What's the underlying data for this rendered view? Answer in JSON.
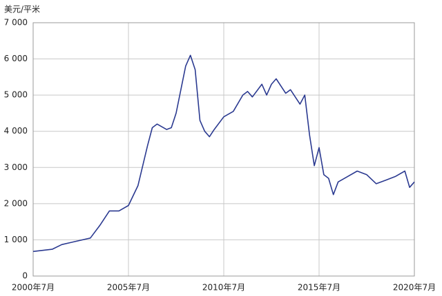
{
  "chart_data": {
    "type": "line",
    "y_label": "美元/平米",
    "x": [
      "2000-07",
      "2001-07",
      "2002-01",
      "2002-07",
      "2003-07",
      "2004-01",
      "2004-07",
      "2005-01",
      "2005-07",
      "2006-01",
      "2006-07",
      "2006-10",
      "2007-01",
      "2007-07",
      "2007-10",
      "2008-01",
      "2008-07",
      "2008-10",
      "2009-01",
      "2009-04",
      "2009-07",
      "2009-10",
      "2010-01",
      "2010-07",
      "2011-01",
      "2011-07",
      "2011-10",
      "2012-01",
      "2012-07",
      "2012-10",
      "2013-01",
      "2013-04",
      "2013-10",
      "2014-01",
      "2014-07",
      "2014-10",
      "2015-01",
      "2015-04",
      "2015-07",
      "2015-10",
      "2016-01",
      "2016-04",
      "2016-07",
      "2017-01",
      "2017-07",
      "2018-01",
      "2018-07",
      "2019-01",
      "2019-07",
      "2020-01",
      "2020-04",
      "2020-07"
    ],
    "series": [
      {
        "name": "美元/平米",
        "color": "#2a3990",
        "values": [
          680,
          740,
          870,
          930,
          1050,
          1400,
          1800,
          1800,
          1950,
          2500,
          3600,
          4100,
          4200,
          4050,
          4100,
          4500,
          5800,
          6100,
          5700,
          4300,
          4000,
          3850,
          4050,
          4400,
          4550,
          5000,
          5100,
          4950,
          5300,
          5000,
          5300,
          5450,
          5050,
          5150,
          4750,
          5000,
          3900,
          3050,
          3550,
          2800,
          2700,
          2250,
          2600,
          2750,
          2900,
          2800,
          2550,
          2650,
          2750,
          2900,
          2450,
          2600
        ]
      }
    ],
    "xlim": [
      "2000-07",
      "2020-07"
    ],
    "xticks": [
      {
        "value": "2000-07",
        "label": "2000年7月"
      },
      {
        "value": "2005-07",
        "label": "2005年7月"
      },
      {
        "value": "2010-07",
        "label": "2010年7月"
      },
      {
        "value": "2015-07",
        "label": "2015年7月"
      },
      {
        "value": "2020-07",
        "label": "2020年7月"
      }
    ],
    "ylim": [
      0,
      7000
    ],
    "yticks": [
      0,
      {
        "value": 1000,
        "label": "1 000"
      },
      {
        "value": 2000,
        "label": "2 000"
      },
      {
        "value": 3000,
        "label": "3 000"
      },
      {
        "value": 4000,
        "label": "4 000"
      },
      {
        "value": 5000,
        "label": "5 000"
      },
      {
        "value": 6000,
        "label": "6 000"
      },
      {
        "value": 7000,
        "label": "7 000"
      }
    ],
    "grid": true
  }
}
